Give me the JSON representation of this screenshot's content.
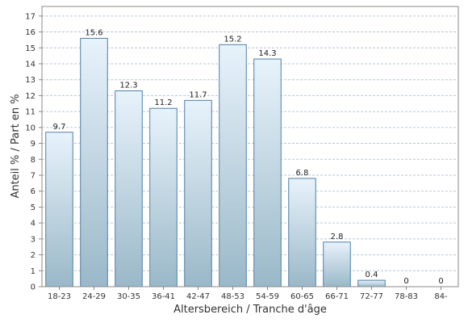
{
  "chart_data": {
    "type": "bar",
    "categories": [
      "18-23",
      "24-29",
      "30-35",
      "36-41",
      "42-47",
      "48-53",
      "54-59",
      "60-65",
      "66-71",
      "72-77",
      "78-83",
      "84-"
    ],
    "values": [
      9.7,
      15.6,
      12.3,
      11.2,
      11.7,
      15.2,
      14.3,
      6.8,
      2.8,
      0.4,
      0,
      0
    ],
    "data_labels": [
      "9.7",
      "15.6",
      "12.3",
      "11.2",
      "11.7",
      "15.2",
      "14.3",
      "6.8",
      "2.8",
      "0.4",
      "0",
      "0"
    ],
    "title": "",
    "xlabel": "Altersbereich / Tranche d'âge",
    "ylabel": "Anteil % / Part en %",
    "ylim": [
      0,
      17.6
    ],
    "yticks": [
      0,
      1,
      2,
      3,
      4,
      5,
      6,
      7,
      8,
      9,
      10,
      11,
      12,
      13,
      14,
      15,
      16,
      17
    ],
    "grid": true,
    "legend": "none",
    "colors": {
      "bar_top": "#e8f3fb",
      "bar_bottom": "#9ab8c8",
      "bar_stroke": "#4f7fa8",
      "grid": "#b9c6d6",
      "axis": "#888888"
    }
  }
}
